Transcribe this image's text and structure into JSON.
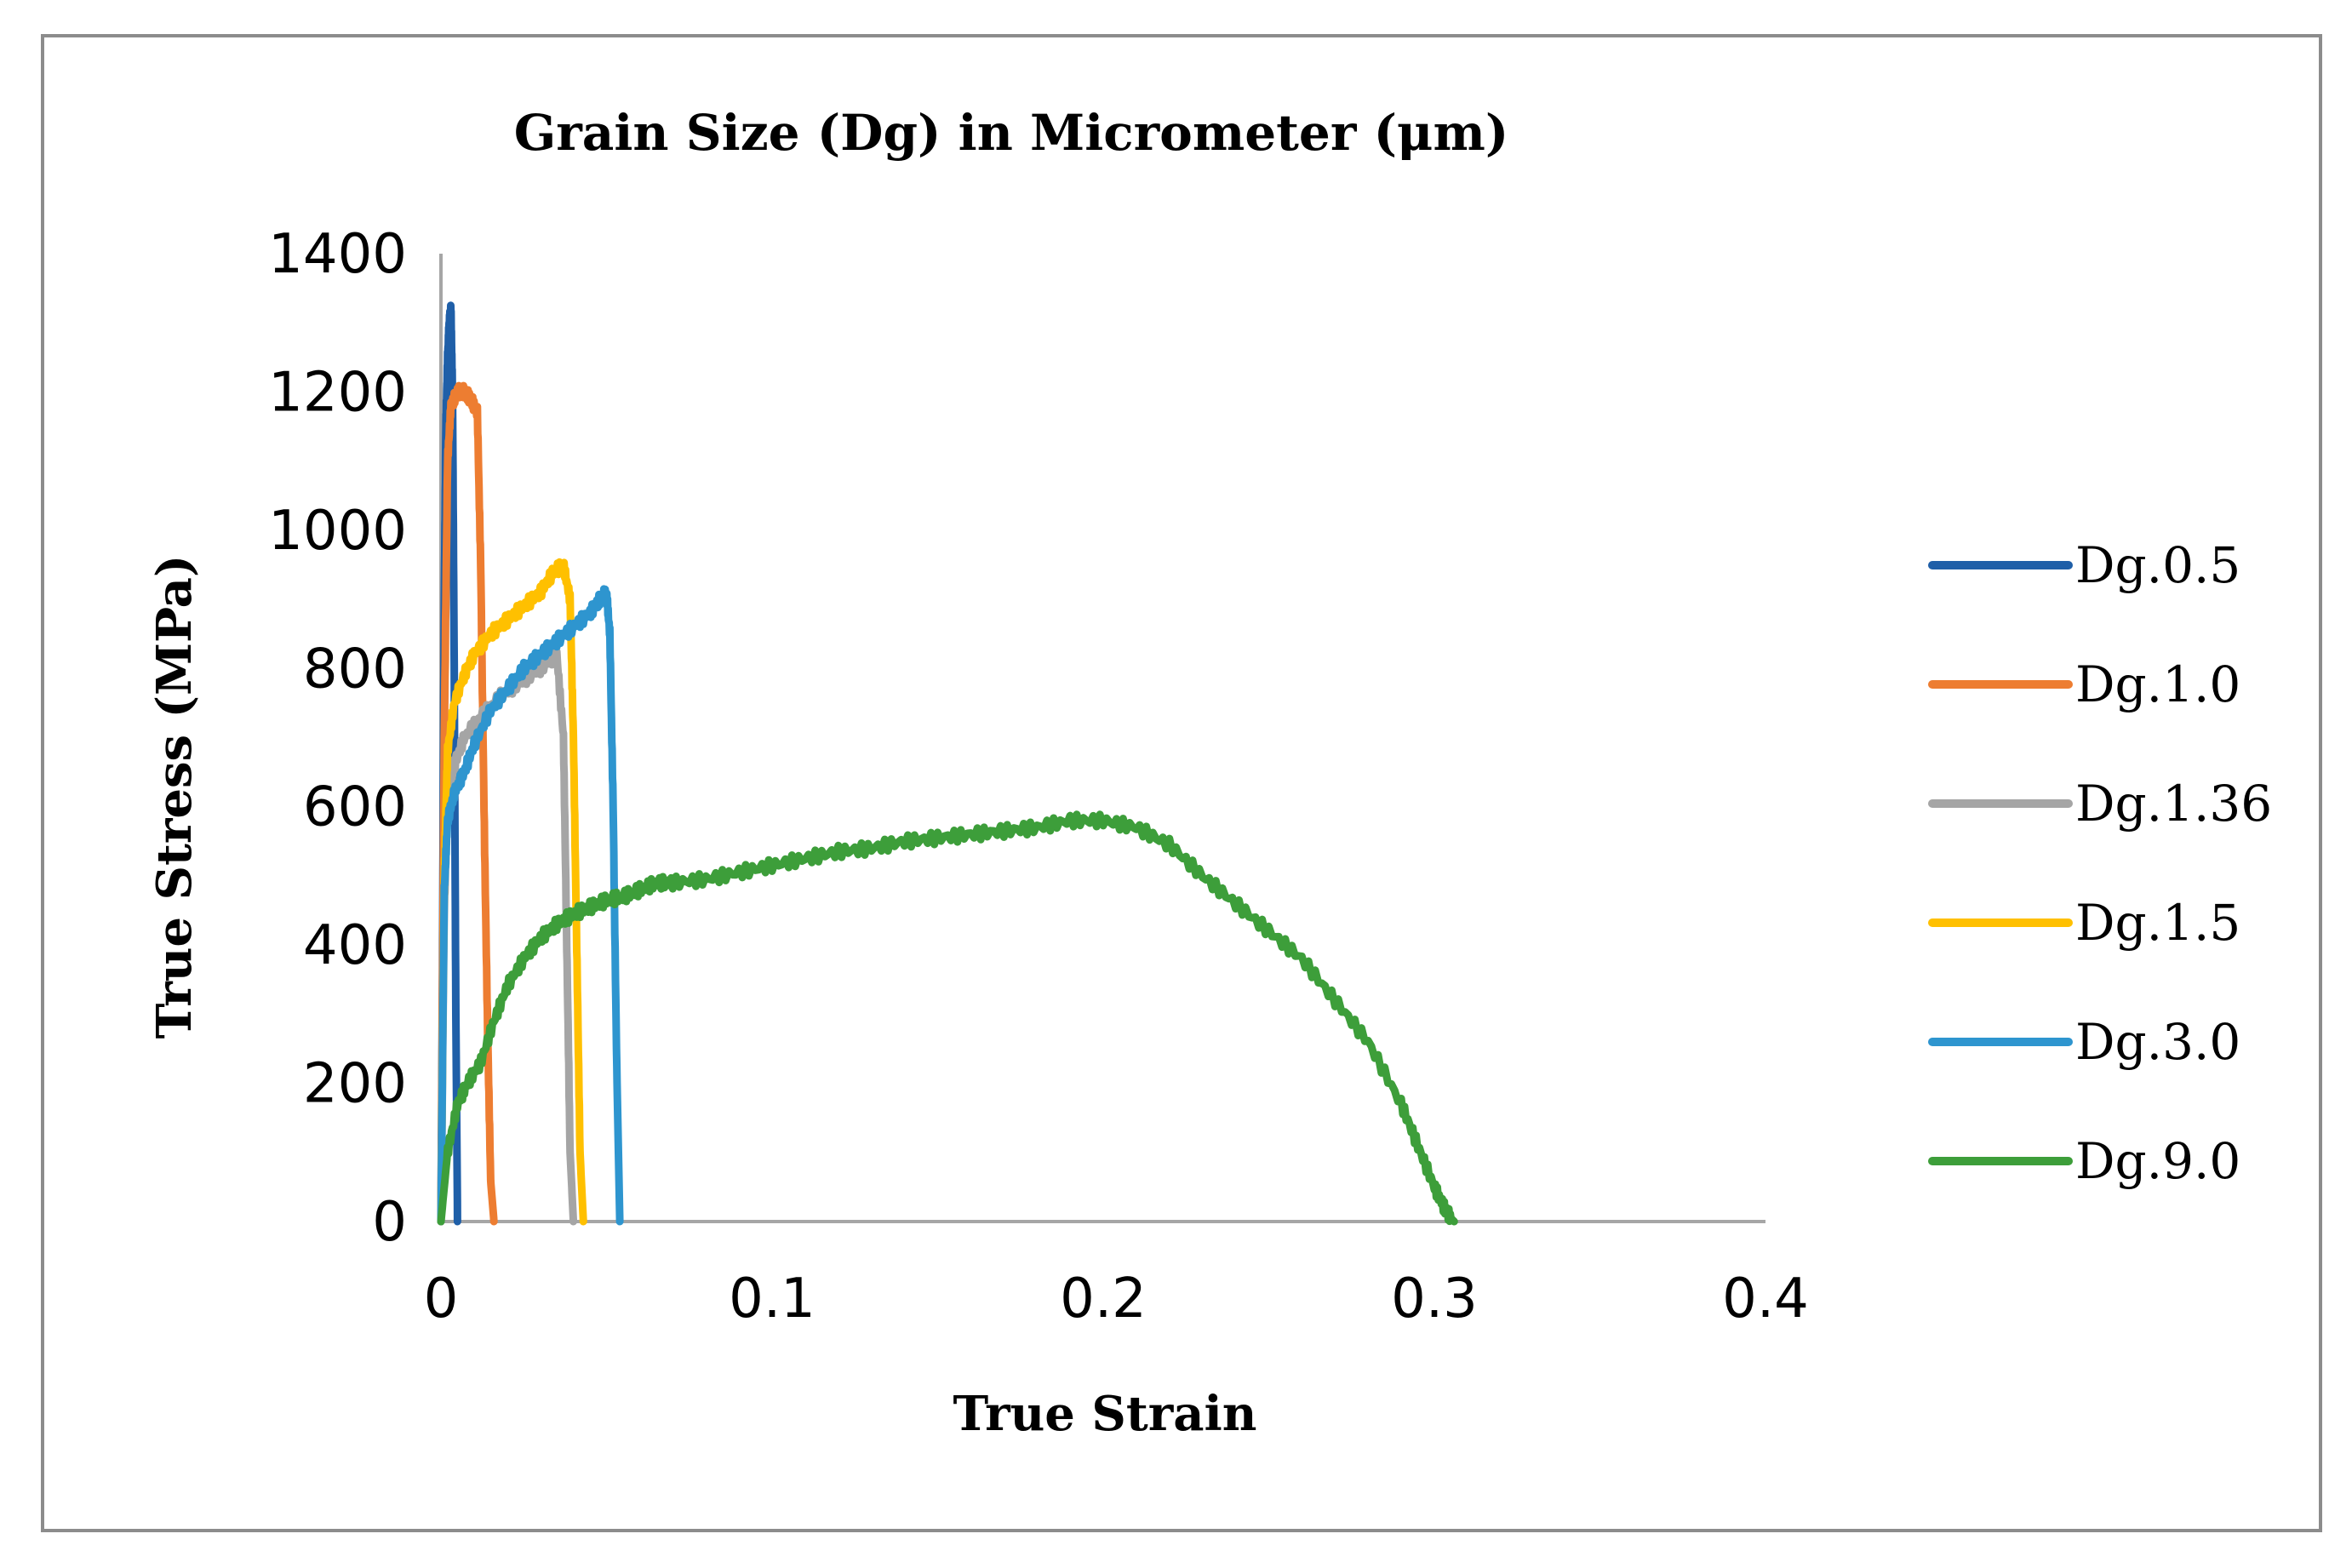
{
  "chart_data": {
    "type": "line",
    "title": "Grain Size (Dg) in Micrometer (μm)",
    "xlabel": "True Strain",
    "ylabel": "True Stress (MPa)",
    "xlim": [
      0,
      0.4
    ],
    "ylim": [
      0,
      1400
    ],
    "xticks": [
      0,
      0.1,
      0.2,
      0.3,
      0.4
    ],
    "xtick_labels": [
      "0",
      "0.1",
      "0.2",
      "0.3",
      "0.4"
    ],
    "yticks": [
      0,
      200,
      400,
      600,
      800,
      1000,
      1200,
      1400
    ],
    "ytick_labels": [
      "0",
      "200",
      "400",
      "600",
      "800",
      "1000",
      "1200",
      "1400"
    ],
    "grid": false,
    "legend_position": "right",
    "series": [
      {
        "name": "Dg.0.5",
        "color": "#1f5fa8",
        "x": [
          0,
          0.0005,
          0.001,
          0.0015,
          0.002,
          0.0025,
          0.003,
          0.0035,
          0.004,
          0.0045,
          0.005
        ],
        "y": [
          0,
          400,
          900,
          1150,
          1250,
          1300,
          1320,
          1200,
          800,
          300,
          0
        ]
      },
      {
        "name": "Dg.1.0",
        "color": "#ed7d31",
        "x": [
          0,
          0.001,
          0.002,
          0.003,
          0.005,
          0.007,
          0.009,
          0.011,
          0.012,
          0.013,
          0.014,
          0.015,
          0.016
        ],
        "y": [
          0,
          700,
          1100,
          1180,
          1200,
          1200,
          1190,
          1170,
          950,
          600,
          300,
          60,
          0
        ]
      },
      {
        "name": "Dg.1.36",
        "color": "#a5a5a5",
        "x": [
          0,
          0.001,
          0.002,
          0.004,
          0.007,
          0.012,
          0.018,
          0.024,
          0.03,
          0.035,
          0.037,
          0.038,
          0.039,
          0.04
        ],
        "y": [
          0,
          450,
          600,
          660,
          700,
          730,
          760,
          780,
          800,
          820,
          700,
          400,
          100,
          0
        ]
      },
      {
        "name": "Dg.1.5",
        "color": "#ffc000",
        "x": [
          0,
          0.001,
          0.002,
          0.004,
          0.007,
          0.01,
          0.015,
          0.02,
          0.025,
          0.03,
          0.034,
          0.037,
          0.039,
          0.04,
          0.041,
          0.042,
          0.043
        ],
        "y": [
          0,
          500,
          680,
          750,
          790,
          820,
          850,
          870,
          890,
          910,
          940,
          950,
          900,
          700,
          400,
          100,
          0
        ]
      },
      {
        "name": "Dg.3.0",
        "color": "#2e95cf",
        "x": [
          0,
          0.001,
          0.002,
          0.004,
          0.007,
          0.01,
          0.015,
          0.02,
          0.025,
          0.03,
          0.035,
          0.04,
          0.045,
          0.048,
          0.05,
          0.051,
          0.052,
          0.053,
          0.054
        ],
        "y": [
          0,
          480,
          580,
          620,
          650,
          690,
          740,
          770,
          800,
          820,
          840,
          860,
          880,
          900,
          910,
          850,
          600,
          250,
          0
        ]
      },
      {
        "name": "Dg.9.0",
        "color": "#3d9e3a",
        "x": [
          0,
          0.002,
          0.005,
          0.008,
          0.012,
          0.016,
          0.02,
          0.025,
          0.03,
          0.035,
          0.04,
          0.045,
          0.05,
          0.055,
          0.06,
          0.065,
          0.07,
          0.08,
          0.09,
          0.1,
          0.11,
          0.12,
          0.13,
          0.14,
          0.15,
          0.16,
          0.17,
          0.18,
          0.19,
          0.2,
          0.21,
          0.22,
          0.23,
          0.24,
          0.25,
          0.26,
          0.27,
          0.28,
          0.29,
          0.295,
          0.3,
          0.303,
          0.305,
          0.306
        ],
        "y": [
          0,
          100,
          170,
          200,
          230,
          290,
          340,
          380,
          410,
          430,
          445,
          455,
          465,
          470,
          480,
          490,
          490,
          495,
          505,
          515,
          525,
          535,
          540,
          550,
          555,
          560,
          565,
          570,
          580,
          580,
          570,
          545,
          500,
          460,
          420,
          380,
          320,
          260,
          170,
          110,
          50,
          20,
          5,
          0
        ]
      }
    ]
  }
}
